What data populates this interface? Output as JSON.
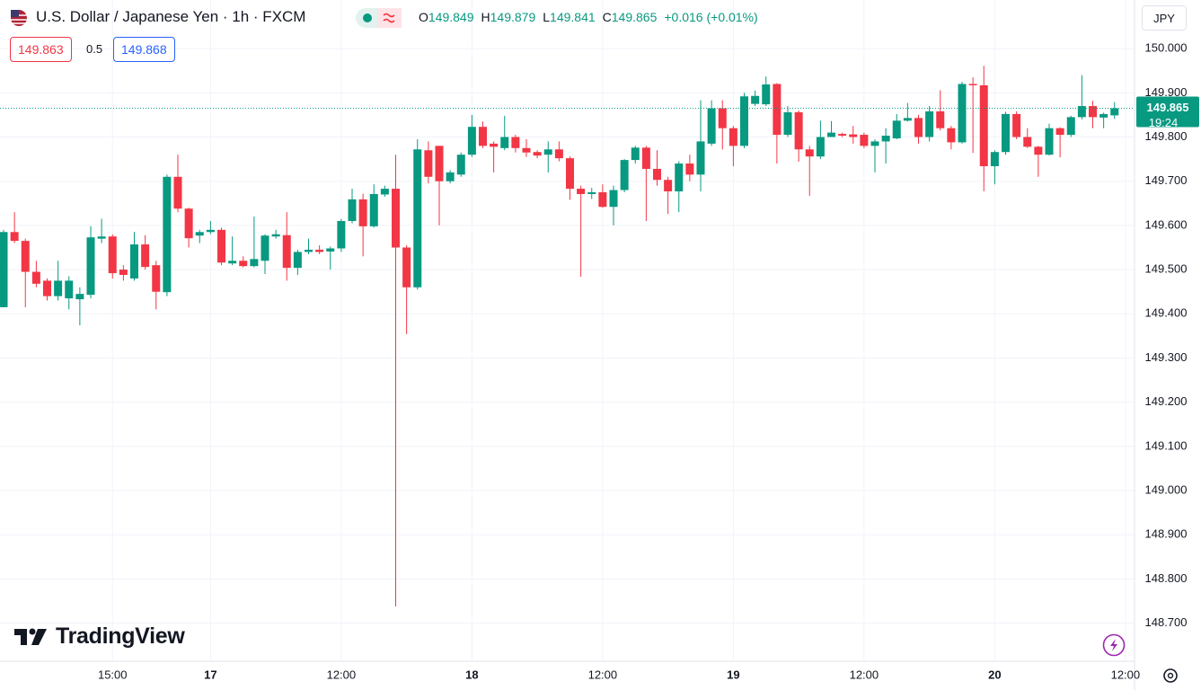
{
  "header": {
    "title": "U.S. Dollar / Japanese Yen · 1h · FXCM",
    "ohlc": [
      {
        "key": "O",
        "value": 149.849
      },
      {
        "key": "H",
        "value": 149.879
      },
      {
        "key": "L",
        "value": 149.841
      },
      {
        "key": "C",
        "value": 149.865
      }
    ],
    "change": "+0.016 (+0.01%)",
    "sell": "149.863",
    "spread": "0.5",
    "buy": "149.868",
    "currency": "JPY"
  },
  "branding": "TradingView",
  "chart_data": {
    "type": "candlestick",
    "categories": [
      null,
      null,
      null,
      null,
      null,
      null,
      null,
      null,
      null,
      null,
      "15:00",
      null,
      null,
      null,
      null,
      null,
      null,
      null,
      null,
      "17",
      null,
      null,
      null,
      null,
      null,
      null,
      null,
      null,
      null,
      null,
      null,
      "12:00",
      null,
      null,
      null,
      null,
      null,
      null,
      null,
      null,
      null,
      null,
      null,
      "18",
      null,
      null,
      null,
      null,
      null,
      null,
      null,
      null,
      null,
      null,
      null,
      "12:00",
      null,
      null,
      null,
      null,
      null,
      null,
      null,
      null,
      null,
      null,
      null,
      "19",
      null,
      null,
      null,
      null,
      null,
      null,
      null,
      null,
      null,
      null,
      null,
      "12:00",
      null,
      null,
      null,
      null,
      null,
      null,
      null,
      null,
      null,
      null,
      null,
      "20",
      null,
      null,
      null,
      null,
      null,
      null,
      null,
      null,
      null,
      null,
      null,
      "12:00"
    ],
    "open": [
      149.415,
      149.585,
      149.565,
      149.495,
      149.475,
      149.44,
      149.435,
      149.433,
      149.443,
      149.57,
      149.575,
      149.5,
      149.48,
      149.557,
      149.51,
      149.449,
      149.71,
      149.638,
      149.577,
      149.585,
      149.59,
      149.514,
      149.52,
      149.508,
      149.52,
      149.575,
      149.578,
      149.504,
      149.54,
      149.545,
      149.541,
      149.548,
      149.61,
      149.659,
      149.598,
      149.67,
      149.683,
      149.55,
      149.46,
      149.77,
      149.78,
      149.7,
      149.715,
      149.76,
      149.823,
      149.785,
      149.775,
      149.8,
      149.775,
      149.766,
      149.76,
      149.772,
      149.752,
      149.683,
      149.671,
      149.675,
      149.642,
      149.68,
      149.748,
      149.776,
      149.728,
      149.703,
      149.677,
      149.74,
      149.715,
      149.785,
      149.865,
      149.82,
      149.78,
      149.875,
      149.874,
      149.92,
      149.805,
      149.856,
      149.772,
      149.756,
      149.8,
      149.807,
      149.806,
      149.805,
      149.78,
      149.79,
      149.797,
      149.837,
      149.843,
      149.8,
      149.858,
      149.82,
      149.788,
      149.92,
      149.917,
      149.734,
      149.766,
      149.852,
      149.8,
      149.778,
      149.76,
      149.82,
      149.805,
      149.845,
      149.87,
      149.844,
      149.849,
      null
    ],
    "high": [
      149.59,
      149.63,
      149.57,
      149.52,
      149.48,
      149.52,
      149.485,
      149.46,
      149.598,
      149.615,
      149.58,
      149.51,
      149.585,
      149.578,
      149.52,
      149.715,
      149.76,
      149.64,
      149.59,
      149.61,
      149.595,
      149.575,
      149.53,
      149.62,
      149.58,
      149.59,
      149.63,
      149.545,
      149.57,
      149.555,
      149.552,
      149.615,
      149.683,
      149.672,
      149.693,
      149.69,
      149.76,
      149.555,
      149.795,
      149.79,
      149.78,
      149.725,
      149.765,
      149.85,
      149.835,
      149.79,
      149.848,
      149.805,
      149.795,
      149.77,
      149.79,
      149.79,
      149.756,
      149.69,
      149.685,
      149.693,
      149.69,
      149.75,
      149.78,
      149.78,
      149.77,
      149.71,
      149.745,
      149.76,
      149.883,
      149.883,
      149.883,
      149.825,
      149.9,
      149.905,
      149.937,
      149.922,
      149.87,
      149.86,
      149.78,
      149.837,
      149.836,
      149.81,
      149.825,
      149.81,
      149.795,
      149.82,
      149.852,
      149.877,
      149.85,
      149.87,
      149.906,
      149.825,
      149.925,
      149.935,
      149.961,
      149.77,
      149.857,
      149.858,
      149.82,
      149.78,
      149.83,
      149.822,
      149.848,
      149.94,
      149.882,
      149.855,
      149.879,
      null
    ],
    "low": [
      149.415,
      149.56,
      149.415,
      149.46,
      149.43,
      149.43,
      149.41,
      149.374,
      149.435,
      149.56,
      149.48,
      149.475,
      149.475,
      149.5,
      149.41,
      149.44,
      149.63,
      149.55,
      149.56,
      149.58,
      149.51,
      149.51,
      149.505,
      149.505,
      149.49,
      149.57,
      149.475,
      149.488,
      149.535,
      149.535,
      149.5,
      149.54,
      149.605,
      149.53,
      149.595,
      149.665,
      148.738,
      149.354,
      149.455,
      149.695,
      149.6,
      149.695,
      149.71,
      149.755,
      149.775,
      149.72,
      149.77,
      149.765,
      149.755,
      149.752,
      149.72,
      149.745,
      149.658,
      149.484,
      149.66,
      149.64,
      149.6,
      149.675,
      149.74,
      149.61,
      149.69,
      149.626,
      149.63,
      149.7,
      149.677,
      149.78,
      149.772,
      149.734,
      149.775,
      149.87,
      149.87,
      149.74,
      149.8,
      149.744,
      149.667,
      149.75,
      149.8,
      149.8,
      149.785,
      149.775,
      149.72,
      149.74,
      149.795,
      149.835,
      149.785,
      149.79,
      149.815,
      149.772,
      149.785,
      149.764,
      149.677,
      149.693,
      149.76,
      149.795,
      149.775,
      149.71,
      149.758,
      149.754,
      149.8,
      149.84,
      149.82,
      149.82,
      149.841,
      null
    ],
    "close": [
      149.585,
      149.565,
      149.495,
      149.468,
      149.44,
      149.475,
      149.475,
      149.445,
      149.573,
      149.575,
      149.492,
      149.488,
      149.557,
      149.506,
      149.45,
      149.71,
      149.638,
      149.571,
      149.585,
      149.59,
      149.516,
      149.52,
      149.508,
      149.524,
      149.577,
      149.58,
      149.504,
      149.54,
      149.545,
      149.54,
      149.548,
      149.61,
      149.659,
      149.598,
      149.671,
      149.683,
      149.55,
      149.46,
      149.772,
      149.71,
      149.7,
      149.72,
      149.76,
      149.823,
      149.78,
      149.778,
      149.8,
      149.775,
      149.765,
      149.758,
      149.772,
      149.752,
      149.683,
      149.671,
      149.675,
      149.642,
      149.68,
      149.748,
      149.776,
      149.728,
      149.703,
      149.677,
      149.74,
      149.715,
      149.79,
      149.865,
      149.82,
      149.78,
      149.892,
      149.893,
      149.919,
      149.805,
      149.856,
      149.772,
      149.756,
      149.8,
      149.81,
      149.803,
      149.8,
      149.78,
      149.79,
      149.803,
      149.837,
      149.843,
      149.8,
      149.858,
      149.82,
      149.788,
      149.92,
      149.917,
      149.734,
      149.766,
      149.852,
      149.8,
      149.778,
      149.76,
      149.82,
      149.805,
      149.845,
      149.87,
      149.845,
      149.852,
      149.865,
      null
    ],
    "up_color": "#089981",
    "down_color": "#f23645",
    "ylim": [
      148.616,
      150.11
    ],
    "yticks": [
      {
        "value": 148.7,
        "label": "148.700"
      },
      {
        "value": 148.8,
        "label": "148.800"
      },
      {
        "value": 148.9,
        "label": "148.900"
      },
      {
        "value": 149.0,
        "label": "149.000"
      },
      {
        "value": 149.1,
        "label": "149.100"
      },
      {
        "value": 149.2,
        "label": "149.200"
      },
      {
        "value": 149.3,
        "label": "149.300"
      },
      {
        "value": 149.4,
        "label": "149.400"
      },
      {
        "value": 149.5,
        "label": "149.500"
      },
      {
        "value": 149.6,
        "label": "149.600"
      },
      {
        "value": 149.7,
        "label": "149.700"
      },
      {
        "value": 149.8,
        "label": "149.800"
      },
      {
        "value": 149.9,
        "label": "149.900"
      },
      {
        "value": 150.0,
        "label": "150.000"
      }
    ],
    "grid": true,
    "last_price": 149.865,
    "countdown": "19:24"
  }
}
